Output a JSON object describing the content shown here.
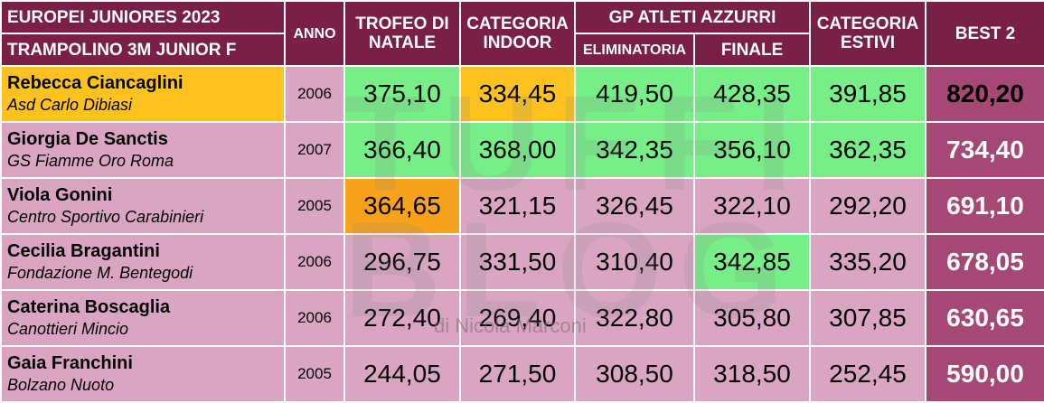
{
  "header": {
    "title1": "EUROPEI JUNIORES 2023",
    "title2": "TRAMPOLINO 3M JUNIOR F",
    "anno": "ANNO",
    "trofeo": "TROFEO DI NATALE",
    "indoor": "CATEGORIA INDOOR",
    "gp": "GP ATLETI AZZURRI",
    "elim": "ELIMINATORIA",
    "finale": "FINALE",
    "estivi": "CATEGORIA ESTIVI",
    "best": "BEST 2"
  },
  "rows": [
    {
      "name": "Rebecca Ciancaglini",
      "club": "Asd Carlo Dibiasi",
      "year": "2006",
      "trofeo": "375,10",
      "indoor": "334,45",
      "elim": "419,50",
      "finale": "428,35",
      "estivi": "391,85",
      "best": "820,20"
    },
    {
      "name": "Giorgia De Sanctis",
      "club": "GS Fiamme Oro Roma",
      "year": "2007",
      "trofeo": "366,40",
      "indoor": "368,00",
      "elim": "342,35",
      "finale": "356,10",
      "estivi": "362,35",
      "best": "734,40"
    },
    {
      "name": "Viola Gonini",
      "club": "Centro Sportivo Carabinieri",
      "year": "2005",
      "trofeo": "364,65",
      "indoor": "321,15",
      "elim": "326,45",
      "finale": "322,10",
      "estivi": "292,20",
      "best": "691,10"
    },
    {
      "name": "Cecilia Bragantini",
      "club": "Fondazione M. Bentegodi",
      "year": "2006",
      "trofeo": "296,75",
      "indoor": "331,50",
      "elim": "310,40",
      "finale": "342,85",
      "estivi": "335,20",
      "best": "678,05"
    },
    {
      "name": "Caterina Boscaglia",
      "club": "Canottieri Mincio",
      "year": "2006",
      "trofeo": "272,40",
      "indoor": "269,40",
      "elim": "322,80",
      "finale": "305,80",
      "estivi": "307,85",
      "best": "630,65"
    },
    {
      "name": "Gaia Franchini",
      "club": "Bolzano Nuoto",
      "year": "2005",
      "trofeo": "244,05",
      "indoor": "271,50",
      "elim": "308,50",
      "finale": "318,50",
      "estivi": "252,45",
      "best": "590,00"
    }
  ],
  "colors": {
    "header": "#7a1f45",
    "row": "#d9a5c3",
    "best": "#a64876",
    "selected": "#77ee88",
    "leader": "#fdc21e",
    "highlight": "#f7a21b"
  },
  "watermark": {
    "logo": "TUFFI BLOG",
    "credit": "di Nicola Marconi"
  }
}
